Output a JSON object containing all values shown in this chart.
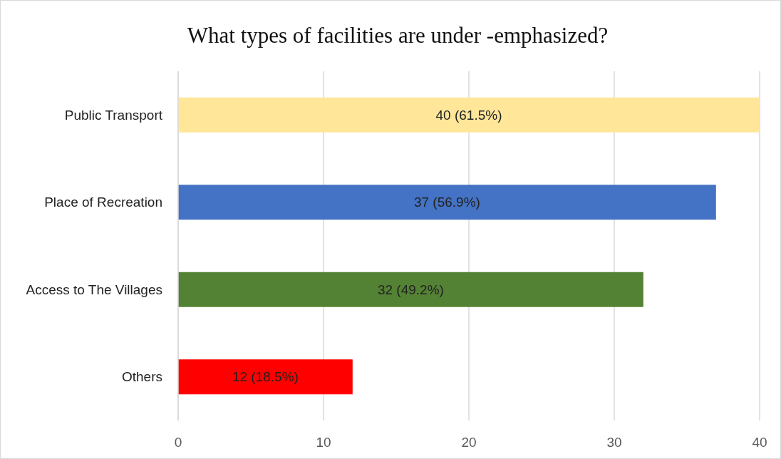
{
  "chart_data": {
    "type": "bar",
    "orientation": "horizontal",
    "title": "What types of facilities are under -emphasized?",
    "categories": [
      "Public Transport",
      "Place of Recreation",
      "Access to The Villages",
      "Others"
    ],
    "values": [
      40,
      37,
      32,
      12
    ],
    "colors": [
      "#ffe699",
      "#4472c4",
      "#548235",
      "#ff0000"
    ],
    "value_labels": [
      "40 (61.5%)",
      "37 (56.9%)",
      "32 (49.2%)",
      "12 (18.5%)"
    ],
    "xlim": [
      0,
      40
    ],
    "xticks": [
      0,
      10,
      20,
      30,
      40
    ],
    "grid": "x"
  }
}
